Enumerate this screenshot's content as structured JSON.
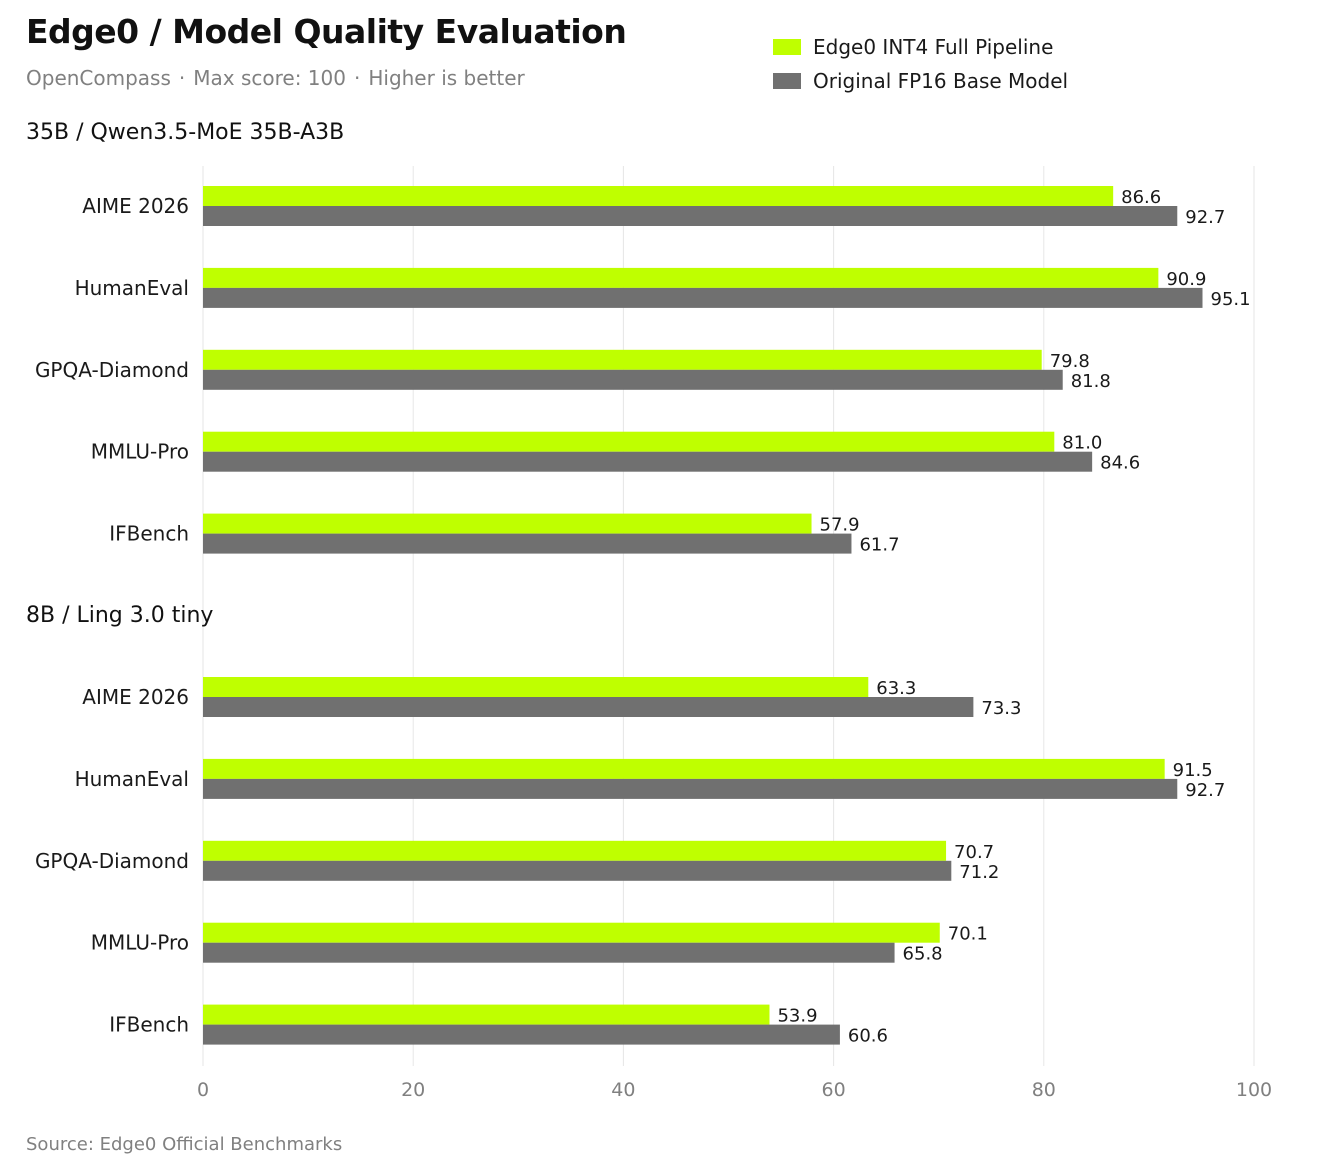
{
  "header": {
    "title": "Edge0 / Model Quality Evaluation",
    "subtitle_parts": [
      "OpenCompass",
      "Max score: 100",
      "Higher is better"
    ]
  },
  "legend": [
    {
      "name": "Edge0 INT4 Full Pipeline",
      "color": "#bfff00"
    },
    {
      "name": "Original FP16 Base Model",
      "color": "#707070"
    }
  ],
  "chart_data": {
    "type": "bar",
    "orientation": "horizontal",
    "xlim": [
      0,
      100
    ],
    "xticks": [
      0,
      20,
      40,
      60,
      80,
      100
    ],
    "grid": true,
    "legend_position": "top-right",
    "groups": [
      {
        "label": "35B  /  Qwen3.5-MoE 35B-A3B",
        "categories": [
          "AIME 2026",
          "HumanEval",
          "GPQA-Diamond",
          "MMLU-Pro",
          "IFBench"
        ],
        "series": [
          {
            "name": "Edge0 INT4 Full Pipeline",
            "values": [
              86.6,
              90.9,
              79.8,
              81.0,
              57.9
            ]
          },
          {
            "name": "Original FP16 Base Model",
            "values": [
              92.7,
              95.1,
              81.8,
              84.6,
              61.7
            ]
          }
        ]
      },
      {
        "label": "8B  /  Ling 3.0 tiny",
        "categories": [
          "AIME 2026",
          "HumanEval",
          "GPQA-Diamond",
          "MMLU-Pro",
          "IFBench"
        ],
        "series": [
          {
            "name": "Edge0 INT4 Full Pipeline",
            "values": [
              63.3,
              91.5,
              70.7,
              70.1,
              53.9
            ]
          },
          {
            "name": "Original FP16 Base Model",
            "values": [
              73.3,
              92.7,
              71.2,
              65.8,
              60.6
            ]
          }
        ]
      }
    ]
  },
  "footer": {
    "source": "Source: Edge0 Official Benchmarks"
  }
}
